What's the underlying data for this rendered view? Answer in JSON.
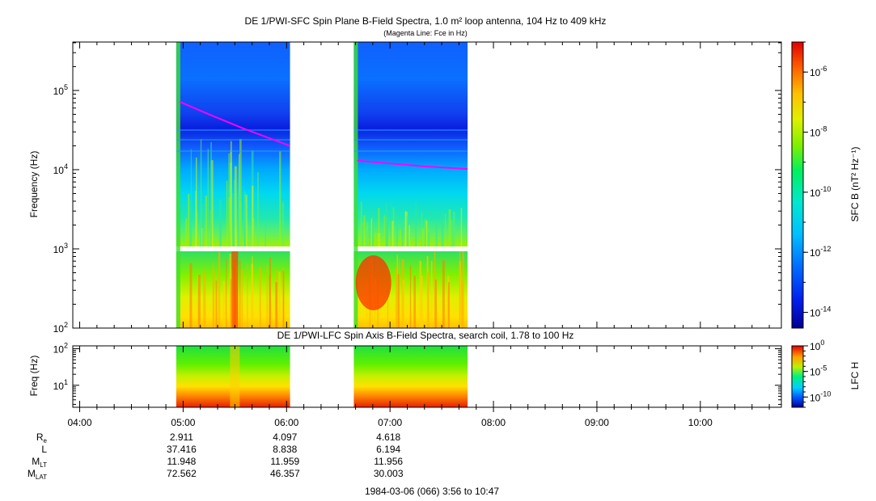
{
  "chart_data": [
    {
      "type": "heatmap",
      "title": "DE 1/PWI-SFC  Spin Plane B-Field Spectra, 1.0 m² loop antenna, 104 Hz to 409 kHz",
      "subtitle": "(Magenta Line: Fce in Hz)",
      "ylabel": "Frequency (Hz)",
      "yscale": "log",
      "ylim": [
        100,
        409000
      ],
      "y_ticks": [
        "10^2",
        "10^3",
        "10^4",
        "10^5"
      ],
      "data_intervals": [
        {
          "start": "04:56",
          "end": "06:02"
        },
        {
          "start": "06:39",
          "end": "07:45"
        }
      ],
      "fce_line": [
        {
          "t": "04:58",
          "f": 72000
        },
        {
          "t": "05:15",
          "f": 50000
        },
        {
          "t": "05:35",
          "f": 33000
        },
        {
          "t": "05:50",
          "f": 25000
        },
        {
          "t": "06:02",
          "f": 20000
        },
        {
          "t": "06:41",
          "f": 13000
        },
        {
          "t": "07:00",
          "f": 12000
        },
        {
          "t": "07:20",
          "f": 11000
        },
        {
          "t": "07:45",
          "f": 10200
        }
      ],
      "colorbar": {
        "label": "SFC B (nT² Hz⁻¹)",
        "scale": "log",
        "range": [
          3e-15,
          1e-05
        ],
        "ticks": [
          "10^-6",
          "10^-8",
          "10^-10",
          "10^-12",
          "10^-14"
        ],
        "colors": [
          "#000090",
          "#0030ff",
          "#00a0ff",
          "#00e8e0",
          "#00f070",
          "#a0f000",
          "#ffff00",
          "#ffb000",
          "#ff4000",
          "#e00000"
        ]
      }
    },
    {
      "type": "heatmap",
      "title": "DE 1/PWI-LFC  Spin Axis B-Field Spectra, search coil, 1.78 to 100 Hz",
      "ylabel": "Freq (Hz)",
      "yscale": "log",
      "ylim": [
        2.5,
        120
      ],
      "y_ticks": [
        "10^1",
        "10^2"
      ],
      "data_intervals": [
        {
          "start": "04:56",
          "end": "06:02"
        },
        {
          "start": "06:39",
          "end": "07:45"
        }
      ],
      "colorbar": {
        "label": "LFC H",
        "scale": "log",
        "range": [
          1e-12,
          1
        ],
        "ticks": [
          "10^0",
          "10^-5",
          "10^-10"
        ]
      }
    }
  ],
  "time_axis": {
    "start": "03:56",
    "end": "10:47",
    "tick_labels": [
      "04:00",
      "05:00",
      "06:00",
      "07:00",
      "08:00",
      "09:00",
      "10:00"
    ]
  },
  "ephemeris": {
    "rows": [
      {
        "label": "R",
        "sub": "e",
        "values": [
          "2.911",
          "4.097",
          "4.618"
        ]
      },
      {
        "label": "L",
        "sub": "",
        "values": [
          "37.416",
          "8.838",
          "6.194"
        ]
      },
      {
        "label": "M",
        "sub": "LT",
        "values": [
          "11.948",
          "11.959",
          "11.956"
        ]
      },
      {
        "label": "M",
        "sub": "LAT",
        "values": [
          "72.562",
          "46.357",
          "30.003"
        ]
      }
    ]
  },
  "footer": "1984-03-06 (066) 3:56 to 10:47"
}
